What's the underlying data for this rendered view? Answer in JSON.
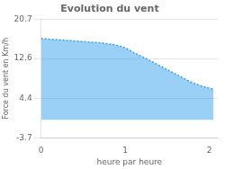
{
  "chart_data": {
    "type": "area",
    "title": "Evolution du vent",
    "x_label": "heure par heure",
    "y_label": "Force du vent en Km/h",
    "x": [
      0,
      0.08,
      0.16,
      0.24,
      0.32,
      0.4,
      0.48,
      0.56,
      0.64,
      0.72,
      0.8,
      0.85,
      0.9,
      0.95,
      1.0,
      1.05,
      1.1,
      1.2,
      1.3,
      1.4,
      1.5,
      1.6,
      1.7,
      1.8,
      1.9,
      2.0,
      2.05
    ],
    "values": [
      16.7,
      16.6,
      16.5,
      16.4,
      16.3,
      16.2,
      16.1,
      16.0,
      15.9,
      15.8,
      15.6,
      15.5,
      15.3,
      15.1,
      14.8,
      14.3,
      13.8,
      13.0,
      12.1,
      11.2,
      10.3,
      9.4,
      8.5,
      7.6,
      7.0,
      6.5,
      6.3
    ],
    "xlim": [
      0,
      2.1
    ],
    "ylim": [
      -3.7,
      20.7
    ],
    "xticks": [
      0,
      1,
      2
    ],
    "yticks": [
      -3.7,
      4.4,
      12.6,
      20.7
    ],
    "grid": "y",
    "line_style": "dotted"
  }
}
